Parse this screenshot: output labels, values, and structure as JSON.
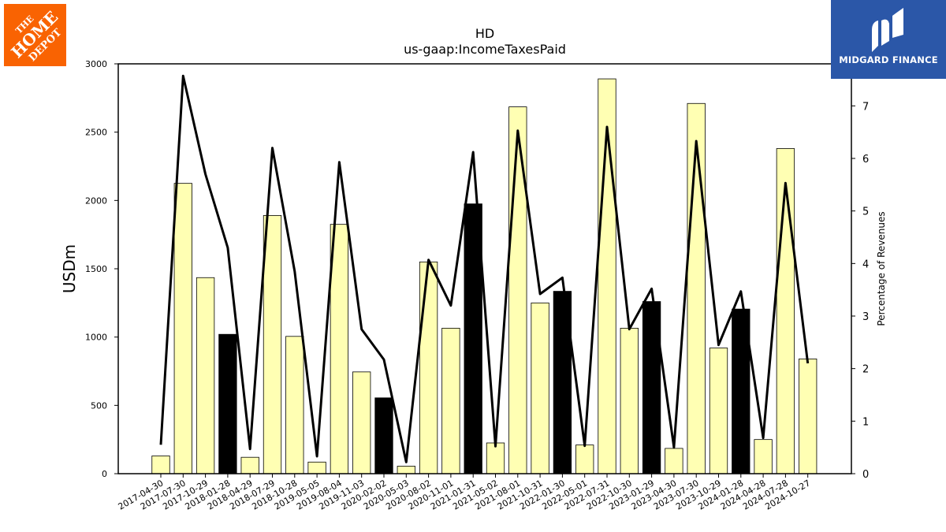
{
  "logos": {
    "left": {
      "text_lines": [
        "THE",
        "HOME",
        "DEPOT"
      ],
      "color": "#f96302"
    },
    "right": {
      "text": "MIDGARD FINANCE",
      "color": "#2b57a8"
    }
  },
  "chart_data": {
    "type": "bar",
    "title": "HD",
    "subtitle": "us-gaap:IncomeTaxesPaid",
    "ylabel": "USDm",
    "y2label": "Percentage of Revenues",
    "ylim": [
      0,
      3000
    ],
    "y2lim": [
      0,
      7.8
    ],
    "yticks": [
      0,
      500,
      1000,
      1500,
      2000,
      2500,
      3000
    ],
    "y2ticks": [
      0,
      1,
      2,
      3,
      4,
      5,
      6,
      7
    ],
    "grid": false,
    "bar_colors": {
      "regular": "#ffffb3",
      "fiscal_year_end": "#000000"
    },
    "line_color": "#000000",
    "categories": [
      "2017-04-30",
      "2017-07-30",
      "2017-10-29",
      "2018-01-28",
      "2018-04-29",
      "2018-07-29",
      "2018-10-28",
      "2019-05-05",
      "2019-08-04",
      "2019-11-03",
      "2020-02-02",
      "2020-05-03",
      "2020-08-02",
      "2020-11-01",
      "2021-01-31",
      "2021-05-02",
      "2021-08-01",
      "2021-10-31",
      "2022-01-30",
      "2022-05-01",
      "2022-07-31",
      "2022-10-30",
      "2023-01-29",
      "2023-04-30",
      "2023-07-30",
      "2023-10-29",
      "2024-01-28",
      "2024-04-28",
      "2024-07-28",
      "2024-10-27"
    ],
    "series": [
      {
        "type": "bar",
        "axis": "left",
        "values": [
          130,
          2125,
          1435,
          1020,
          120,
          1890,
          1005,
          85,
          1825,
          745,
          555,
          55,
          1550,
          1065,
          1975,
          225,
          2685,
          1250,
          1335,
          210,
          2890,
          1065,
          1260,
          185,
          2710,
          920,
          1205,
          250,
          2380,
          840
        ],
        "highlight": [
          false,
          false,
          false,
          true,
          false,
          false,
          false,
          false,
          false,
          false,
          true,
          false,
          false,
          false,
          true,
          false,
          false,
          false,
          true,
          false,
          false,
          false,
          true,
          false,
          false,
          false,
          true,
          false,
          false,
          false
        ]
      },
      {
        "type": "line",
        "axis": "right",
        "values": [
          0.55,
          7.57,
          5.7,
          4.3,
          0.47,
          6.2,
          3.85,
          0.33,
          5.93,
          2.75,
          2.17,
          0.22,
          4.07,
          3.2,
          6.12,
          0.52,
          6.53,
          3.42,
          3.73,
          0.53,
          6.6,
          2.75,
          3.52,
          0.5,
          6.33,
          2.45,
          3.47,
          0.68,
          5.53,
          2.1
        ]
      }
    ]
  }
}
